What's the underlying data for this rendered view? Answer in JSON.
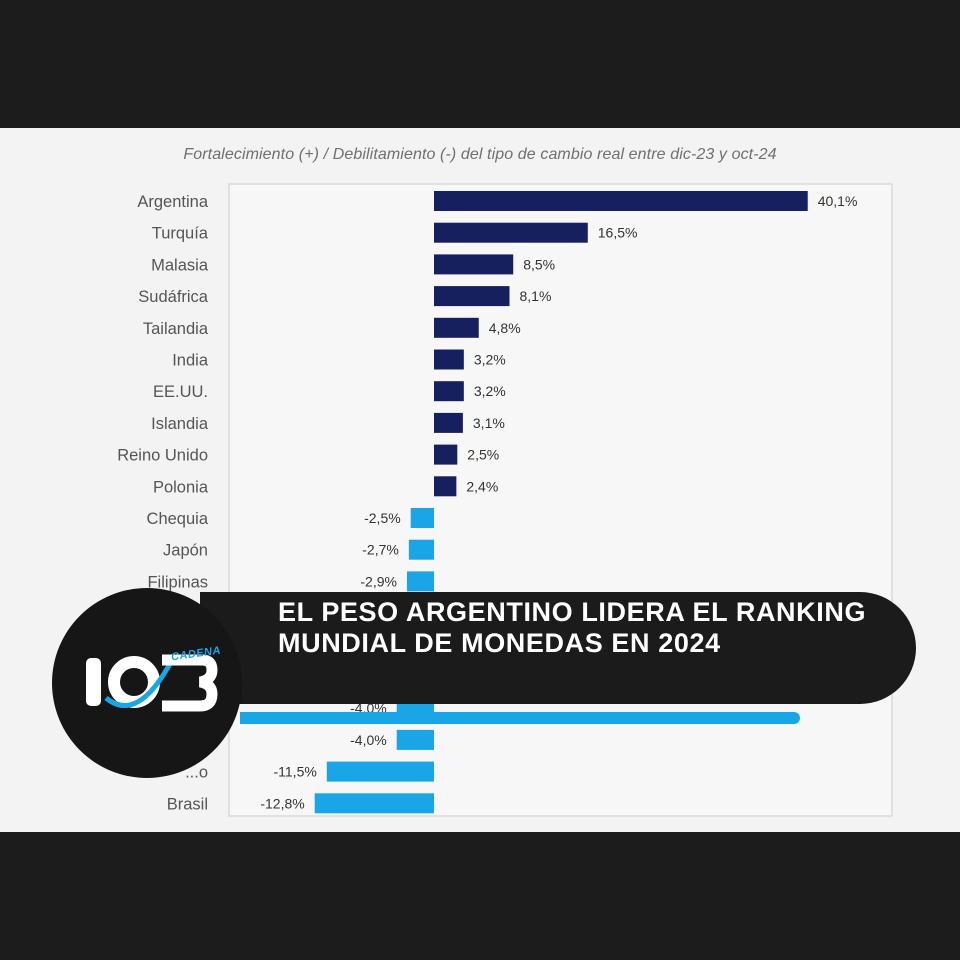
{
  "chart_data": {
    "type": "bar",
    "orientation": "horizontal",
    "title": "Fortalecimiento (+) / Debilitamiento (-) del tipo de cambio real entre dic-23 y oct-24",
    "categories": [
      "Argentina",
      "Turquía",
      "Malasia",
      "Sudáfrica",
      "Tailandia",
      "India",
      "EE.UU.",
      "Islandia",
      "Reino Unido",
      "Polonia",
      "Chequia",
      "Japón",
      "Filipinas",
      "",
      "",
      "",
      "",
      "",
      "",
      "Brasil"
    ],
    "values": [
      40.1,
      16.5,
      8.5,
      8.1,
      4.8,
      3.2,
      3.2,
      3.1,
      2.5,
      2.4,
      -2.5,
      -2.7,
      -2.9,
      null,
      null,
      null,
      -4.0,
      -4.0,
      -11.5,
      -12.8
    ],
    "value_labels": [
      "40,1%",
      "16,5%",
      "8,5%",
      "8,1%",
      "4,8%",
      "3,2%",
      "3,2%",
      "3,1%",
      "2,5%",
      "2,4%",
      "-2,5%",
      "-2,7%",
      "-2,9%",
      "",
      "",
      "",
      "-4,0%",
      "-4,0%",
      "-11,5%",
      "-12,8%"
    ],
    "partial_category_labels": {
      "18": "...o"
    },
    "colors": {
      "positive": "#16205e",
      "negative": "#1aa5e6"
    },
    "grid": false,
    "legend": "none"
  },
  "banner": {
    "headline": "EL PESO ARGENTINO LIDERA EL RANKING MUNDIAL DE MONEDAS EN 2024"
  },
  "logo": {
    "number": "103",
    "word": "CADENA",
    "accent": "#1aa5e6"
  }
}
